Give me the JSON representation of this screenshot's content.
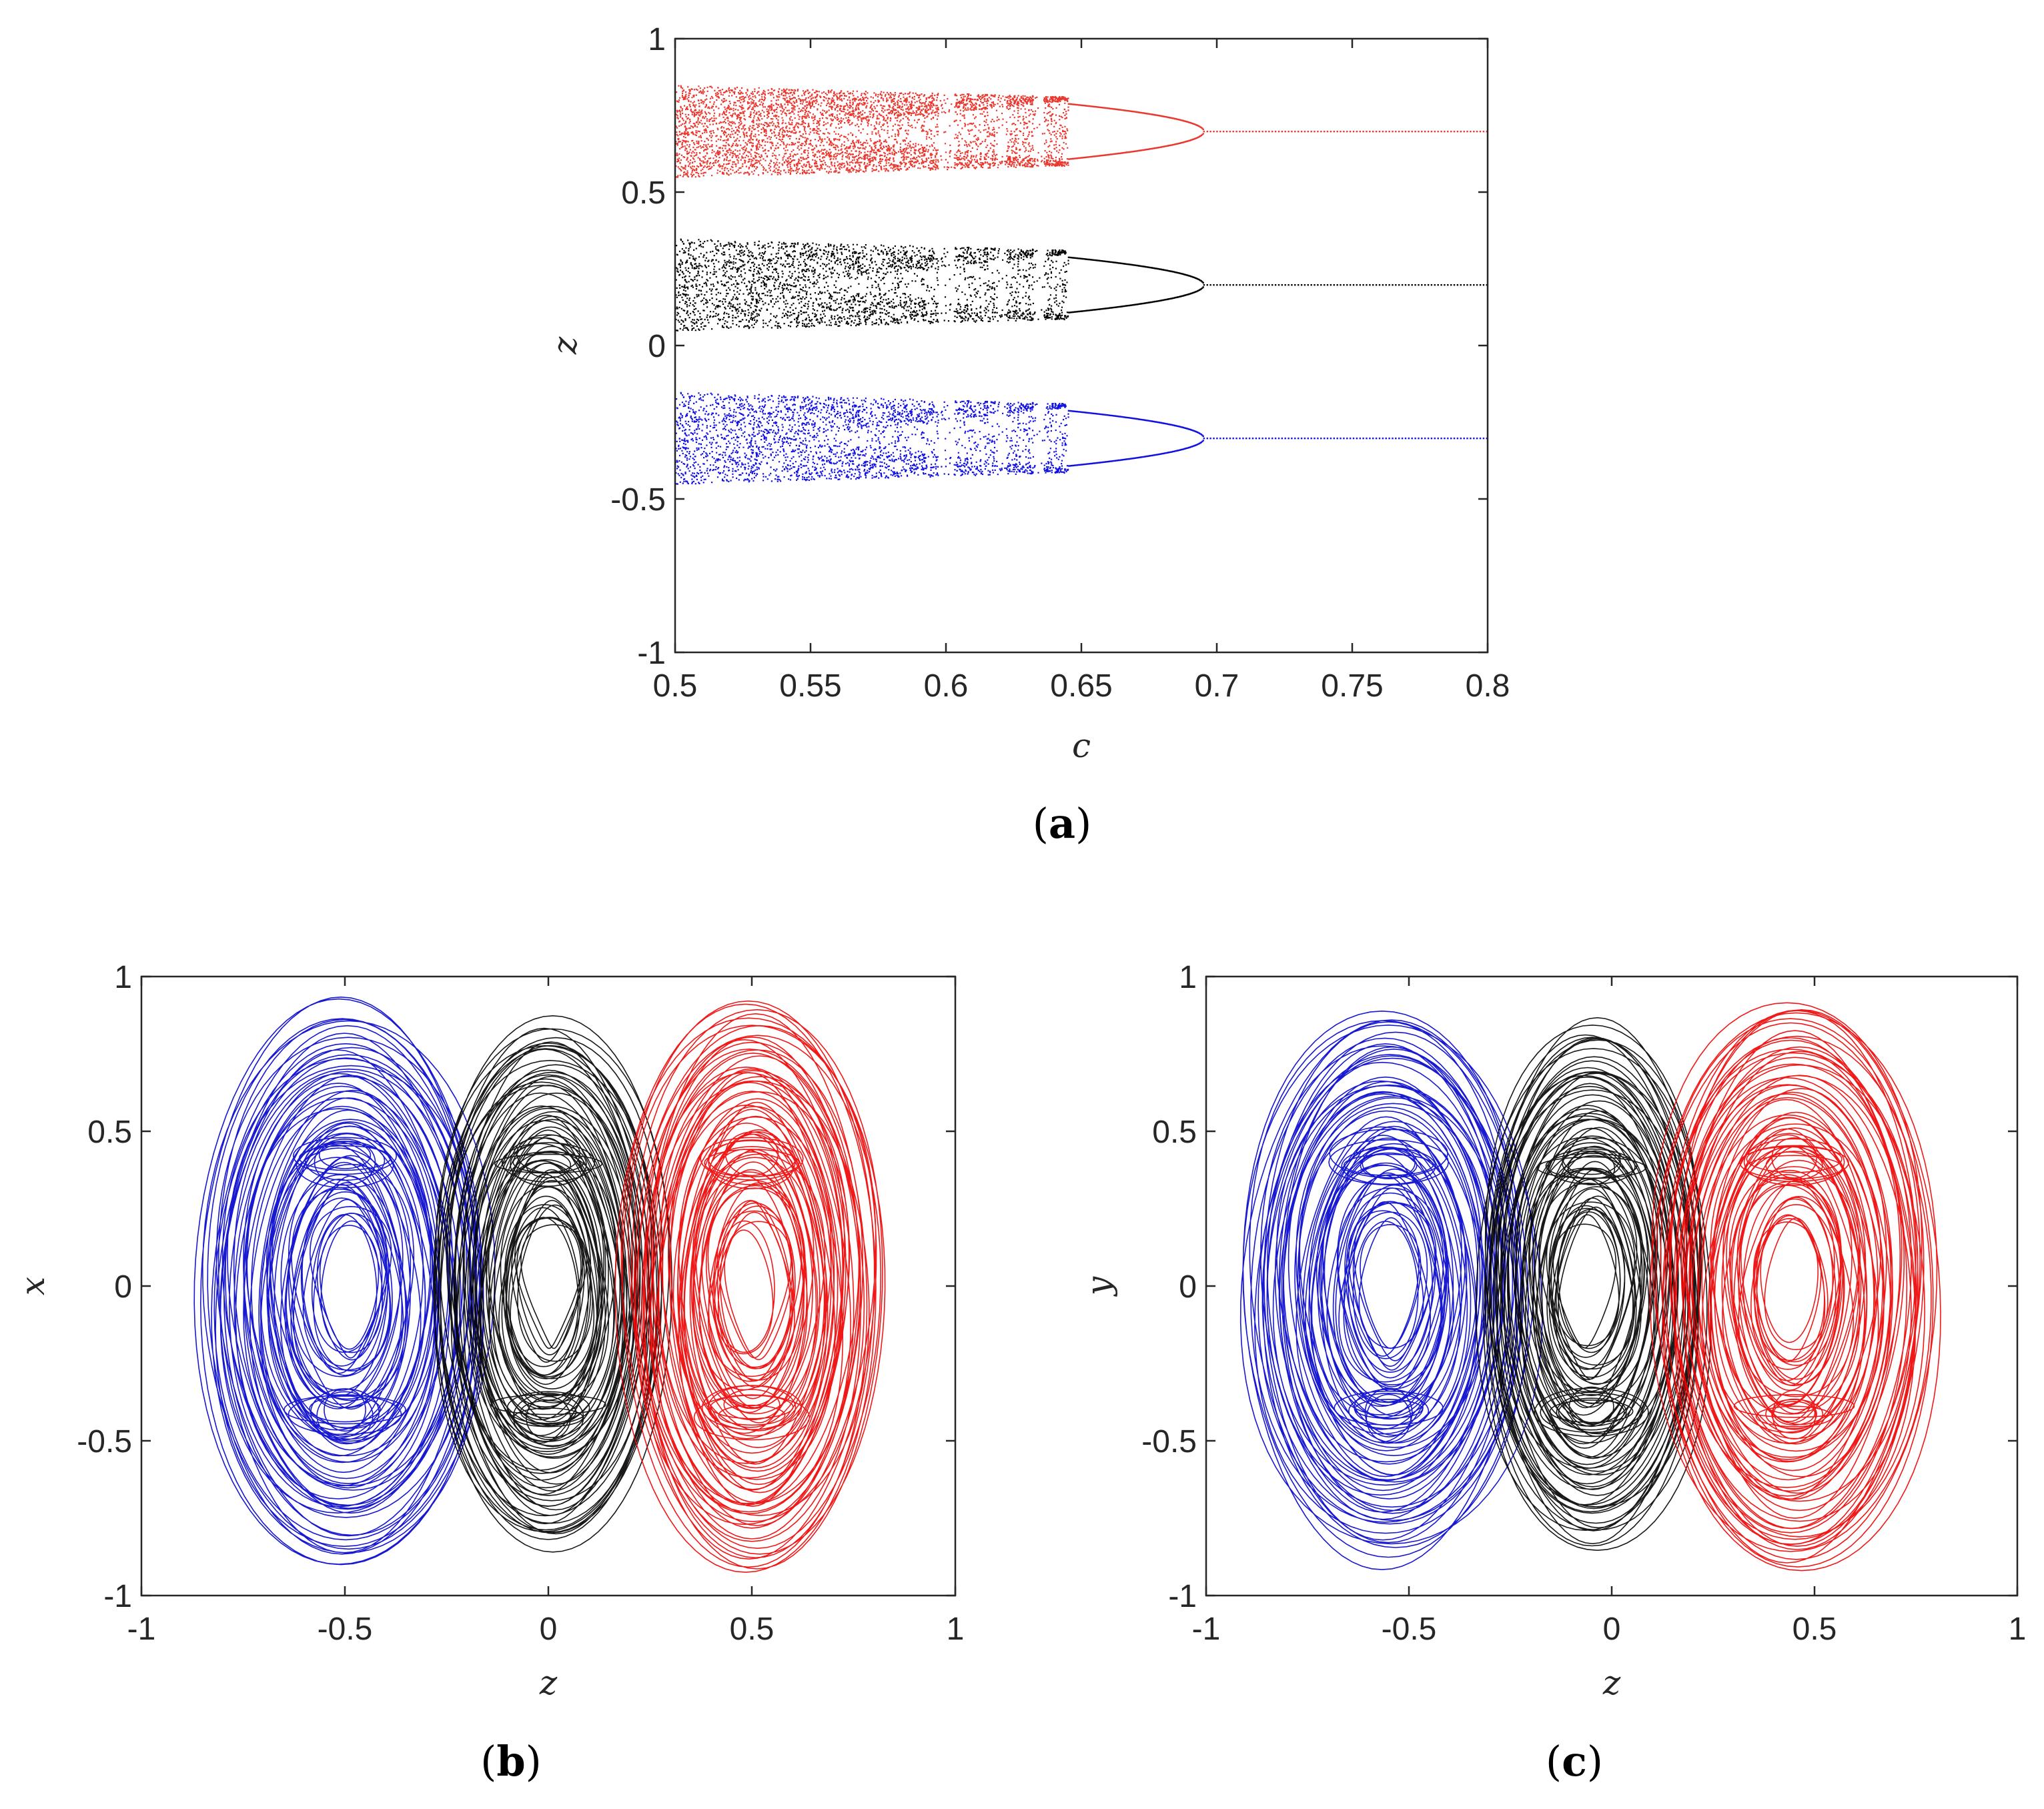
{
  "chart_data": [
    {
      "id": "a",
      "type": "scatter",
      "subtype": "bifurcation-diagram",
      "caption_open": "(",
      "caption_letter": "a",
      "caption_close": ")",
      "xlabel": "c",
      "ylabel": "z",
      "xlim": [
        0.5,
        0.8
      ],
      "ylim": [
        -1,
        1
      ],
      "xticks": [
        0.5,
        0.55,
        0.6,
        0.65,
        0.7,
        0.75,
        0.8
      ],
      "xtick_labels": [
        "0.5",
        "0.55",
        "0.6",
        "0.65",
        "0.7",
        "0.75",
        "0.8"
      ],
      "yticks": [
        -1,
        -0.5,
        0,
        0.5,
        1
      ],
      "ytick_labels": [
        "-1",
        "-0.5",
        "0",
        "0.5",
        "1"
      ],
      "chaos_end_c": 0.645,
      "period_doubling_c": 0.695,
      "series": [
        {
          "name": "red",
          "color": "#e8382f",
          "fixed_point_z": 0.7,
          "spread": 0.15
        },
        {
          "name": "black",
          "color": "#000000",
          "fixed_point_z": 0.2,
          "spread": 0.15
        },
        {
          "name": "blue",
          "color": "#1010e0",
          "fixed_point_z": -0.3,
          "spread": 0.15
        }
      ]
    },
    {
      "id": "b",
      "type": "line",
      "subtype": "phase-portrait",
      "caption_open": "(",
      "caption_letter": "b",
      "caption_close": ")",
      "xlabel": "z",
      "ylabel": "x",
      "xlim": [
        -1,
        1
      ],
      "ylim": [
        -1,
        1
      ],
      "xticks": [
        -1,
        -0.5,
        0,
        0.5,
        1
      ],
      "xtick_labels": [
        "-1",
        "-0.5",
        "0",
        "0.5",
        "1"
      ],
      "yticks": [
        -1,
        -0.5,
        0,
        0.5,
        1
      ],
      "ytick_labels": [
        "-1",
        "-0.5",
        "0",
        "0.5",
        "1"
      ],
      "series": [
        {
          "name": "blue",
          "color": "#0000cc",
          "center": [
            -0.5,
            0
          ],
          "outer_rx": 0.37,
          "outer_ry": 0.94
        },
        {
          "name": "black",
          "color": "#000000",
          "center": [
            0,
            0
          ],
          "outer_rx": 0.3,
          "outer_ry": 0.9
        },
        {
          "name": "red",
          "color": "#ee0000",
          "center": [
            0.5,
            0
          ],
          "outer_rx": 0.33,
          "outer_ry": 0.98
        }
      ]
    },
    {
      "id": "c",
      "type": "line",
      "subtype": "phase-portrait",
      "caption_open": "(",
      "caption_letter": "c",
      "caption_close": ")",
      "xlabel": "z",
      "ylabel": "y",
      "xlim": [
        -1,
        1
      ],
      "ylim": [
        -1,
        1
      ],
      "xticks": [
        -1,
        -0.5,
        0,
        0.5,
        1
      ],
      "xtick_labels": [
        "-1",
        "-0.5",
        "0",
        "0.5",
        "1"
      ],
      "yticks": [
        -1,
        -0.5,
        0,
        0.5,
        1
      ],
      "ytick_labels": [
        "-1",
        "-0.5",
        "0",
        "0.5",
        "1"
      ],
      "series": [
        {
          "name": "blue",
          "color": "#0000cc",
          "center": [
            -0.55,
            0
          ],
          "outer_rx": 0.37,
          "outer_ry": 0.93
        },
        {
          "name": "black",
          "color": "#000000",
          "center": [
            -0.05,
            0
          ],
          "outer_rx": 0.3,
          "outer_ry": 0.89
        },
        {
          "name": "red",
          "color": "#ee0000",
          "center": [
            0.45,
            0
          ],
          "outer_rx": 0.37,
          "outer_ry": 0.98
        }
      ]
    }
  ]
}
